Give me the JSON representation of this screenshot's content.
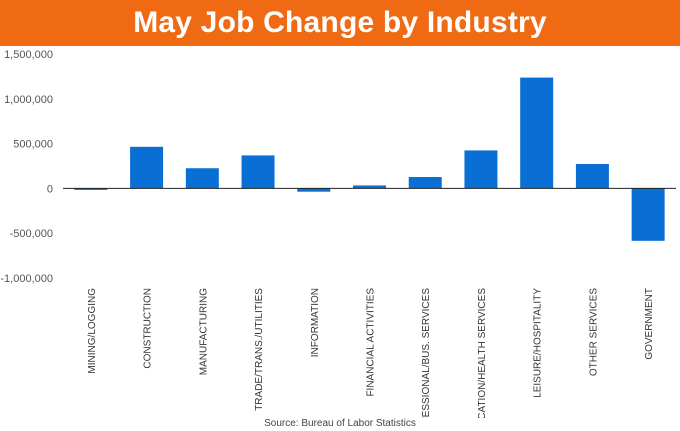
{
  "title": "May Job Change by Industry",
  "source": "Source: Bureau of Labor Statistics",
  "colors": {
    "title_bar": "#ef6a12",
    "bar": "#0a6fd4"
  },
  "chart_data": {
    "type": "bar",
    "title": "May Job Change by Industry",
    "xlabel": "",
    "ylabel": "",
    "ylim": [
      -1000000,
      1500000
    ],
    "yticks": [
      1500000,
      1000000,
      500000,
      0,
      -500000,
      -1000000
    ],
    "ytick_labels": [
      "1,500,000",
      "1,000,000",
      "500,000",
      "0",
      "-500,000",
      "-1,000,000"
    ],
    "grid": false,
    "categories": [
      "MINING/LOGGING",
      "CONSTRUCTION",
      "MANUFACTURING",
      "TRADE/TRANS./UTILITIES",
      "INFORMATION",
      "FINANCIAL ACTIVITIES",
      "PROFESSIONAL/BUS. SERVICES",
      "EDUCATION/HEALTH SERVICES",
      "LEISURE/HOSPITALITY",
      "OTHER SERVICES",
      "GOVERNMENT"
    ],
    "values": [
      -17000,
      464000,
      225000,
      368000,
      -37000,
      33000,
      127000,
      424000,
      1237000,
      272000,
      -585000
    ]
  }
}
